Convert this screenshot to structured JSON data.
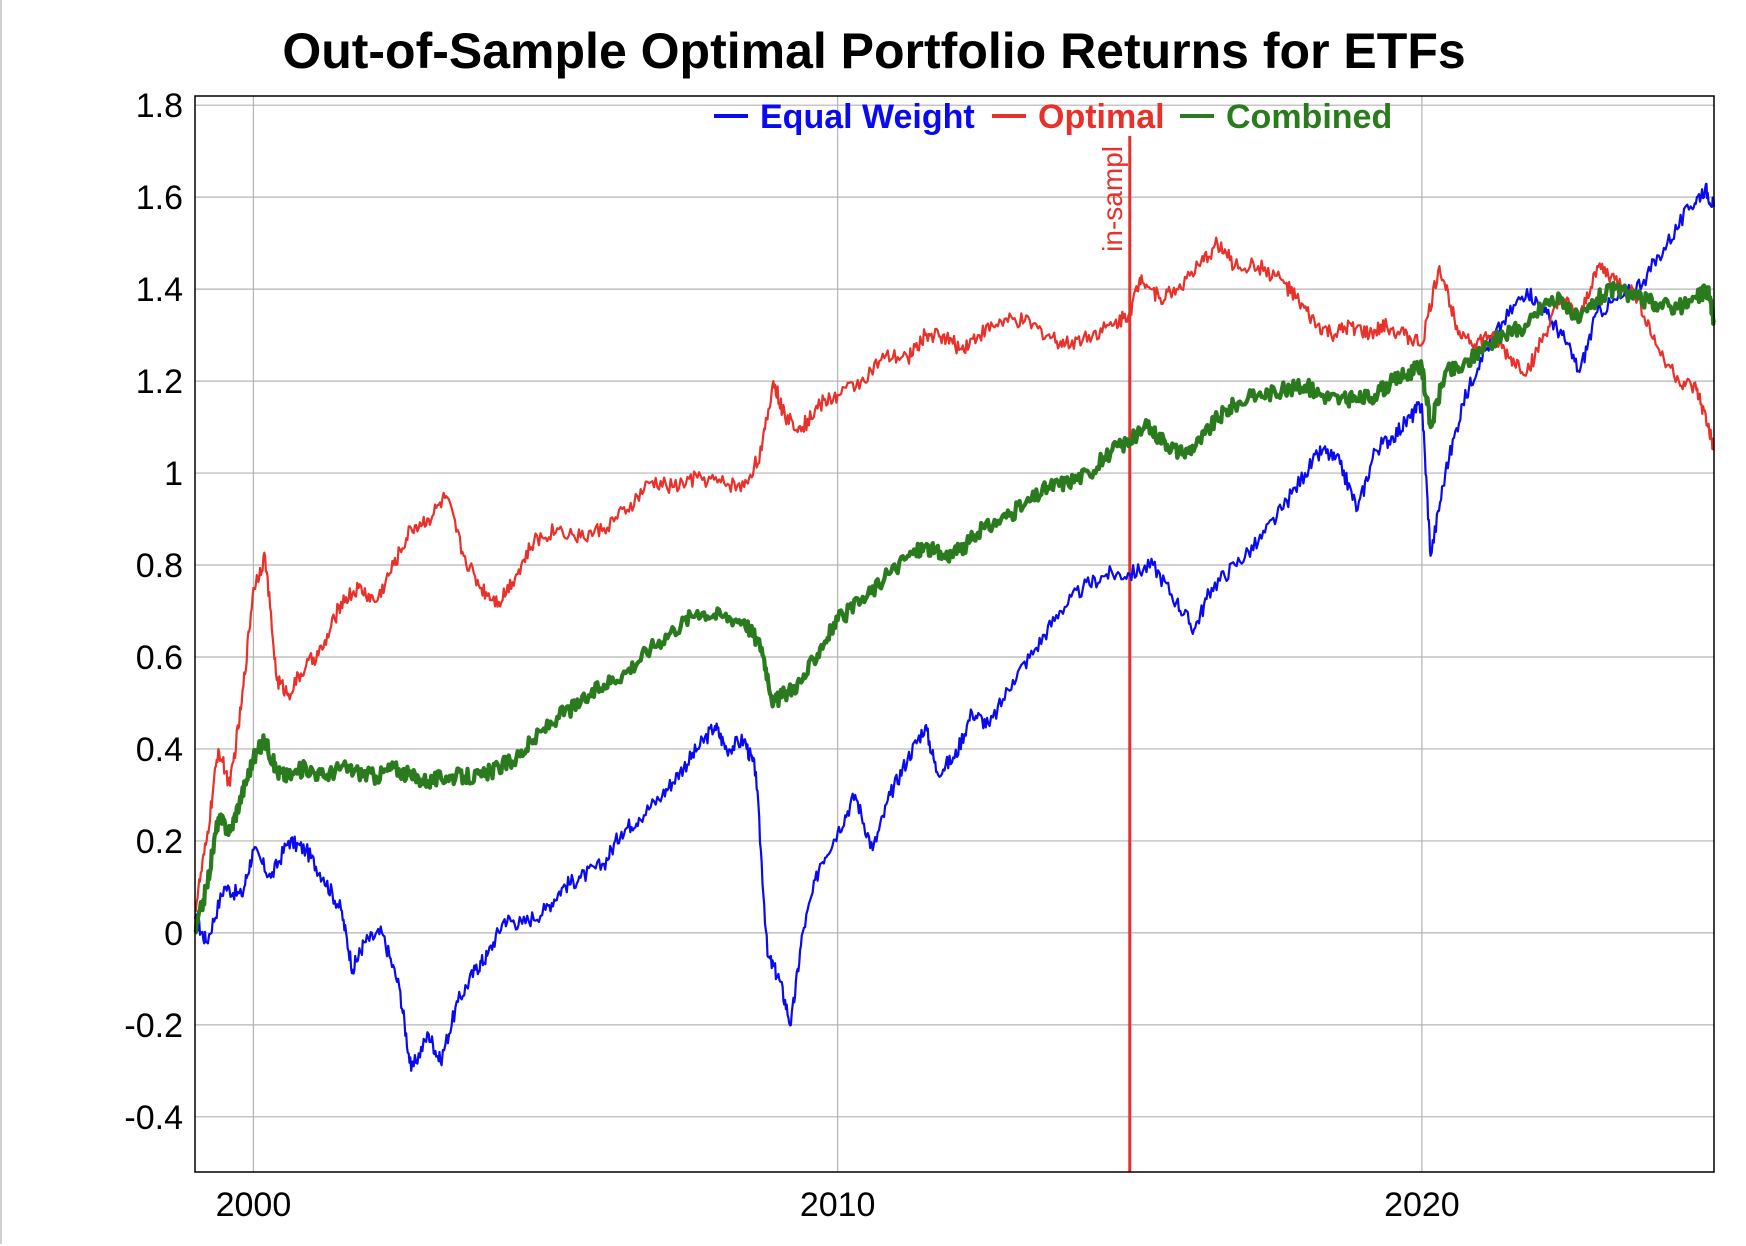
{
  "chart_data": {
    "type": "line",
    "title": "Out-of-Sample Optimal Portfolio Returns for ETFs",
    "xlabel": "",
    "ylabel": "",
    "xlim": [
      1999.0,
      2025.0
    ],
    "ylim": [
      -0.52,
      1.82
    ],
    "x_ticks": [
      {
        "value": 2000,
        "label": "2000"
      },
      {
        "value": 2010,
        "label": "2010"
      },
      {
        "value": 2020,
        "label": "2020"
      }
    ],
    "y_ticks": [
      {
        "value": 1.8,
        "label": "1.8"
      },
      {
        "value": 1.6,
        "label": "1.6"
      },
      {
        "value": 1.4,
        "label": "1.4"
      },
      {
        "value": 1.2,
        "label": "1.2"
      },
      {
        "value": 1.0,
        "label": "1"
      },
      {
        "value": 0.8,
        "label": "0.8"
      },
      {
        "value": 0.6,
        "label": "0.6"
      },
      {
        "value": 0.4,
        "label": "0.4"
      },
      {
        "value": 0.2,
        "label": "0.2"
      },
      {
        "value": 0.0,
        "label": "0"
      },
      {
        "value": -0.2,
        "label": "-0.2"
      },
      {
        "value": -0.4,
        "label": "-0.4"
      }
    ],
    "grid": true,
    "legend_position": "top-center",
    "annotations": [
      {
        "type": "vline",
        "x": 2015.0,
        "label": "in-sampl",
        "color": "#e8312a"
      }
    ],
    "series": [
      {
        "name": "Equal Weight",
        "color": "#0a0af0",
        "points": [
          [
            1999.0,
            0.03
          ],
          [
            1999.2,
            -0.02
          ],
          [
            1999.5,
            0.1
          ],
          [
            1999.8,
            0.08
          ],
          [
            2000.0,
            0.18
          ],
          [
            2000.3,
            0.12
          ],
          [
            2000.6,
            0.2
          ],
          [
            2000.9,
            0.18
          ],
          [
            2001.2,
            0.12
          ],
          [
            2001.5,
            0.05
          ],
          [
            2001.7,
            -0.08
          ],
          [
            2001.9,
            -0.02
          ],
          [
            2002.2,
            0.0
          ],
          [
            2002.5,
            -0.12
          ],
          [
            2002.7,
            -0.3
          ],
          [
            2003.0,
            -0.22
          ],
          [
            2003.2,
            -0.28
          ],
          [
            2003.5,
            -0.15
          ],
          [
            2003.8,
            -0.08
          ],
          [
            2004.0,
            -0.05
          ],
          [
            2004.3,
            0.03
          ],
          [
            2004.6,
            0.02
          ],
          [
            2005.0,
            0.05
          ],
          [
            2005.3,
            0.1
          ],
          [
            2005.6,
            0.12
          ],
          [
            2006.0,
            0.15
          ],
          [
            2006.3,
            0.22
          ],
          [
            2006.6,
            0.25
          ],
          [
            2007.0,
            0.3
          ],
          [
            2007.3,
            0.35
          ],
          [
            2007.6,
            0.4
          ],
          [
            2007.9,
            0.45
          ],
          [
            2008.1,
            0.4
          ],
          [
            2008.4,
            0.42
          ],
          [
            2008.6,
            0.35
          ],
          [
            2008.8,
            -0.05
          ],
          [
            2009.0,
            -0.1
          ],
          [
            2009.2,
            -0.2
          ],
          [
            2009.4,
            0.0
          ],
          [
            2009.7,
            0.15
          ],
          [
            2010.0,
            0.22
          ],
          [
            2010.3,
            0.3
          ],
          [
            2010.6,
            0.18
          ],
          [
            2010.9,
            0.3
          ],
          [
            2011.2,
            0.38
          ],
          [
            2011.5,
            0.45
          ],
          [
            2011.7,
            0.35
          ],
          [
            2012.0,
            0.38
          ],
          [
            2012.3,
            0.48
          ],
          [
            2012.6,
            0.45
          ],
          [
            2013.0,
            0.55
          ],
          [
            2013.4,
            0.62
          ],
          [
            2013.8,
            0.7
          ],
          [
            2014.2,
            0.75
          ],
          [
            2014.6,
            0.78
          ],
          [
            2015.0,
            0.78
          ],
          [
            2015.4,
            0.8
          ],
          [
            2015.8,
            0.72
          ],
          [
            2016.1,
            0.66
          ],
          [
            2016.4,
            0.75
          ],
          [
            2016.8,
            0.8
          ],
          [
            2017.2,
            0.85
          ],
          [
            2017.6,
            0.92
          ],
          [
            2018.0,
            1.0
          ],
          [
            2018.3,
            1.05
          ],
          [
            2018.6,
            1.02
          ],
          [
            2018.9,
            0.92
          ],
          [
            2019.2,
            1.05
          ],
          [
            2019.5,
            1.08
          ],
          [
            2019.8,
            1.12
          ],
          [
            2020.0,
            1.15
          ],
          [
            2020.15,
            0.82
          ],
          [
            2020.4,
            1.0
          ],
          [
            2020.7,
            1.15
          ],
          [
            2021.0,
            1.25
          ],
          [
            2021.4,
            1.33
          ],
          [
            2021.8,
            1.4
          ],
          [
            2022.1,
            1.35
          ],
          [
            2022.4,
            1.3
          ],
          [
            2022.7,
            1.22
          ],
          [
            2023.0,
            1.35
          ],
          [
            2023.4,
            1.38
          ],
          [
            2023.8,
            1.42
          ],
          [
            2024.2,
            1.5
          ],
          [
            2024.6,
            1.58
          ],
          [
            2024.85,
            1.62
          ],
          [
            2025.0,
            1.58
          ]
        ]
      },
      {
        "name": "Optimal",
        "color": "#e8312a",
        "points": [
          [
            1999.0,
            0.05
          ],
          [
            1999.2,
            0.2
          ],
          [
            1999.4,
            0.4
          ],
          [
            1999.6,
            0.32
          ],
          [
            1999.8,
            0.5
          ],
          [
            2000.0,
            0.75
          ],
          [
            2000.2,
            0.82
          ],
          [
            2000.4,
            0.55
          ],
          [
            2000.6,
            0.52
          ],
          [
            2000.9,
            0.58
          ],
          [
            2001.2,
            0.62
          ],
          [
            2001.5,
            0.72
          ],
          [
            2001.8,
            0.75
          ],
          [
            2002.1,
            0.72
          ],
          [
            2002.4,
            0.8
          ],
          [
            2002.7,
            0.88
          ],
          [
            2003.0,
            0.9
          ],
          [
            2003.3,
            0.95
          ],
          [
            2003.6,
            0.82
          ],
          [
            2003.9,
            0.75
          ],
          [
            2004.2,
            0.72
          ],
          [
            2004.5,
            0.78
          ],
          [
            2004.8,
            0.85
          ],
          [
            2005.2,
            0.88
          ],
          [
            2005.6,
            0.86
          ],
          [
            2006.0,
            0.88
          ],
          [
            2006.4,
            0.92
          ],
          [
            2006.8,
            0.98
          ],
          [
            2007.2,
            0.97
          ],
          [
            2007.6,
            0.99
          ],
          [
            2008.0,
            0.98
          ],
          [
            2008.4,
            0.97
          ],
          [
            2008.7,
            1.05
          ],
          [
            2008.9,
            1.2
          ],
          [
            2009.1,
            1.12
          ],
          [
            2009.4,
            1.1
          ],
          [
            2009.7,
            1.15
          ],
          [
            2010.0,
            1.17
          ],
          [
            2010.4,
            1.2
          ],
          [
            2010.8,
            1.25
          ],
          [
            2011.2,
            1.25
          ],
          [
            2011.5,
            1.3
          ],
          [
            2011.8,
            1.3
          ],
          [
            2012.1,
            1.27
          ],
          [
            2012.4,
            1.3
          ],
          [
            2012.8,
            1.33
          ],
          [
            2013.2,
            1.33
          ],
          [
            2013.6,
            1.3
          ],
          [
            2013.9,
            1.28
          ],
          [
            2014.3,
            1.3
          ],
          [
            2014.7,
            1.32
          ],
          [
            2015.0,
            1.35
          ],
          [
            2015.2,
            1.43
          ],
          [
            2015.5,
            1.38
          ],
          [
            2015.8,
            1.4
          ],
          [
            2016.2,
            1.45
          ],
          [
            2016.5,
            1.5
          ],
          [
            2016.8,
            1.45
          ],
          [
            2017.2,
            1.45
          ],
          [
            2017.6,
            1.42
          ],
          [
            2017.9,
            1.37
          ],
          [
            2018.2,
            1.32
          ],
          [
            2018.5,
            1.3
          ],
          [
            2018.8,
            1.32
          ],
          [
            2019.1,
            1.3
          ],
          [
            2019.4,
            1.32
          ],
          [
            2019.7,
            1.3
          ],
          [
            2020.0,
            1.28
          ],
          [
            2020.3,
            1.45
          ],
          [
            2020.6,
            1.32
          ],
          [
            2020.9,
            1.28
          ],
          [
            2021.2,
            1.3
          ],
          [
            2021.5,
            1.25
          ],
          [
            2021.8,
            1.22
          ],
          [
            2022.1,
            1.3
          ],
          [
            2022.4,
            1.38
          ],
          [
            2022.7,
            1.33
          ],
          [
            2023.0,
            1.45
          ],
          [
            2023.3,
            1.42
          ],
          [
            2023.7,
            1.38
          ],
          [
            2024.0,
            1.28
          ],
          [
            2024.4,
            1.2
          ],
          [
            2024.7,
            1.18
          ],
          [
            2024.9,
            1.1
          ],
          [
            2025.0,
            1.05
          ]
        ]
      },
      {
        "name": "Combined",
        "color": "#2a7a1e",
        "points": [
          [
            1999.0,
            0.0
          ],
          [
            1999.2,
            0.1
          ],
          [
            1999.4,
            0.25
          ],
          [
            1999.6,
            0.22
          ],
          [
            1999.8,
            0.3
          ],
          [
            2000.0,
            0.38
          ],
          [
            2000.2,
            0.42
          ],
          [
            2000.4,
            0.35
          ],
          [
            2000.6,
            0.34
          ],
          [
            2000.9,
            0.36
          ],
          [
            2001.2,
            0.34
          ],
          [
            2001.5,
            0.36
          ],
          [
            2001.8,
            0.35
          ],
          [
            2002.1,
            0.34
          ],
          [
            2002.4,
            0.36
          ],
          [
            2002.7,
            0.34
          ],
          [
            2003.0,
            0.33
          ],
          [
            2003.3,
            0.34
          ],
          [
            2003.6,
            0.34
          ],
          [
            2003.9,
            0.34
          ],
          [
            2004.2,
            0.36
          ],
          [
            2004.5,
            0.38
          ],
          [
            2004.8,
            0.42
          ],
          [
            2005.2,
            0.47
          ],
          [
            2005.6,
            0.5
          ],
          [
            2006.0,
            0.54
          ],
          [
            2006.4,
            0.57
          ],
          [
            2006.8,
            0.62
          ],
          [
            2007.2,
            0.66
          ],
          [
            2007.6,
            0.7
          ],
          [
            2008.0,
            0.69
          ],
          [
            2008.4,
            0.68
          ],
          [
            2008.7,
            0.62
          ],
          [
            2008.9,
            0.5
          ],
          [
            2009.1,
            0.52
          ],
          [
            2009.4,
            0.55
          ],
          [
            2009.7,
            0.62
          ],
          [
            2010.0,
            0.68
          ],
          [
            2010.4,
            0.72
          ],
          [
            2010.8,
            0.77
          ],
          [
            2011.2,
            0.82
          ],
          [
            2011.5,
            0.84
          ],
          [
            2011.8,
            0.82
          ],
          [
            2012.1,
            0.83
          ],
          [
            2012.4,
            0.87
          ],
          [
            2012.8,
            0.9
          ],
          [
            2013.2,
            0.93
          ],
          [
            2013.6,
            0.97
          ],
          [
            2013.9,
            0.98
          ],
          [
            2014.3,
            1.0
          ],
          [
            2014.7,
            1.05
          ],
          [
            2015.0,
            1.07
          ],
          [
            2015.3,
            1.1
          ],
          [
            2015.6,
            1.07
          ],
          [
            2015.9,
            1.04
          ],
          [
            2016.2,
            1.07
          ],
          [
            2016.5,
            1.12
          ],
          [
            2016.8,
            1.15
          ],
          [
            2017.2,
            1.17
          ],
          [
            2017.6,
            1.18
          ],
          [
            2018.0,
            1.19
          ],
          [
            2018.3,
            1.17
          ],
          [
            2018.6,
            1.16
          ],
          [
            2018.9,
            1.16
          ],
          [
            2019.2,
            1.17
          ],
          [
            2019.5,
            1.2
          ],
          [
            2019.8,
            1.22
          ],
          [
            2020.0,
            1.23
          ],
          [
            2020.15,
            1.1
          ],
          [
            2020.4,
            1.22
          ],
          [
            2020.7,
            1.23
          ],
          [
            2021.0,
            1.27
          ],
          [
            2021.4,
            1.3
          ],
          [
            2021.8,
            1.32
          ],
          [
            2022.1,
            1.37
          ],
          [
            2022.4,
            1.38
          ],
          [
            2022.7,
            1.33
          ],
          [
            2023.0,
            1.38
          ],
          [
            2023.3,
            1.4
          ],
          [
            2023.7,
            1.38
          ],
          [
            2024.0,
            1.37
          ],
          [
            2024.4,
            1.36
          ],
          [
            2024.7,
            1.38
          ],
          [
            2024.9,
            1.4
          ],
          [
            2025.0,
            1.33
          ]
        ]
      }
    ]
  }
}
